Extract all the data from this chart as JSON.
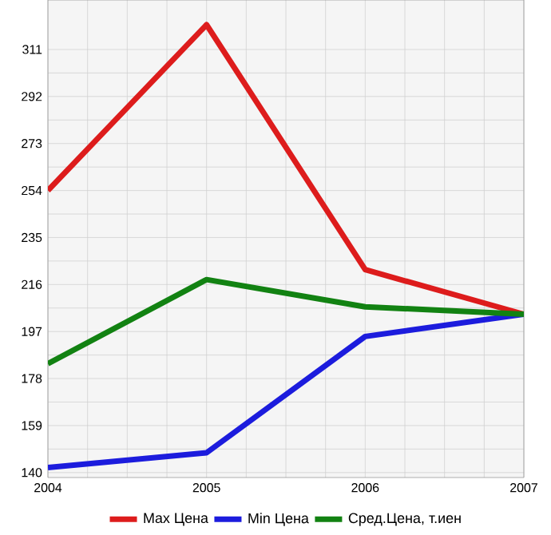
{
  "chart_data": {
    "type": "line",
    "x": [
      2004,
      2005,
      2006,
      2007
    ],
    "series": [
      {
        "name": "Max Цена",
        "color": "#dd1c1c",
        "values": [
          254,
          321,
          222,
          204
        ]
      },
      {
        "name": "Min Цена",
        "color": "#1c1cdd",
        "values": [
          142,
          148,
          195,
          204
        ]
      },
      {
        "name": "Сред.Цена, т.иен",
        "color": "#128212",
        "values": [
          184,
          218,
          207,
          204
        ]
      }
    ],
    "xlim": [
      2004,
      2007
    ],
    "ylim": [
      138,
      331
    ],
    "xticks": [
      2004,
      2005,
      2006,
      2007
    ],
    "yticks": [
      140,
      159,
      178,
      197,
      216,
      235,
      254,
      273,
      292,
      311
    ],
    "grid": true,
    "legend": "bottom",
    "marker": "none",
    "line_style": "solid"
  }
}
